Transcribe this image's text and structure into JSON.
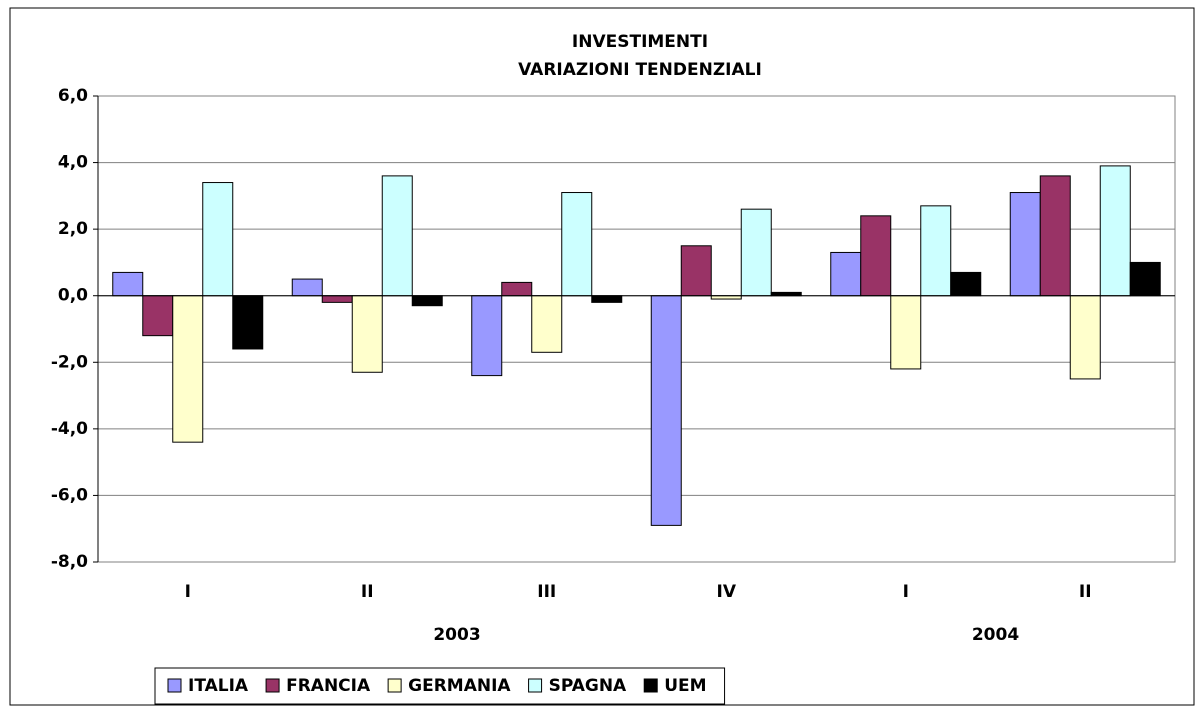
{
  "chart_data": {
    "type": "bar",
    "title": [
      "INVESTIMENTI",
      "VARIAZIONI TENDENZIALI"
    ],
    "categories": [
      "I",
      "II",
      "III",
      "IV",
      "I",
      "II"
    ],
    "groups": [
      {
        "label": "2003",
        "count": 4
      },
      {
        "label": "2004",
        "count": 2
      }
    ],
    "series": [
      {
        "name": "ITALIA",
        "color": "#9999ff",
        "values": [
          0.7,
          0.5,
          -2.4,
          -6.9,
          1.3,
          3.1
        ]
      },
      {
        "name": "FRANCIA",
        "color": "#993366",
        "values": [
          -1.2,
          -0.2,
          0.4,
          1.5,
          2.4,
          3.6
        ]
      },
      {
        "name": "GERMANIA",
        "color": "#ffffcc",
        "values": [
          -4.4,
          -2.3,
          -1.7,
          -0.1,
          -2.2,
          -2.5
        ]
      },
      {
        "name": "SPAGNA",
        "color": "#ccffff",
        "values": [
          3.4,
          3.6,
          3.1,
          2.6,
          2.7,
          3.9
        ]
      },
      {
        "name": "UEM",
        "color": "#000000",
        "values": [
          -1.6,
          -0.3,
          -0.2,
          0.1,
          0.7,
          1.0
        ]
      }
    ],
    "ylim": [
      -8,
      6
    ],
    "yticks": [
      {
        "value": -8,
        "label": "-8,0"
      },
      {
        "value": -6,
        "label": "-6,0"
      },
      {
        "value": -4,
        "label": "-4,0"
      },
      {
        "value": -2,
        "label": "-2,0"
      },
      {
        "value": 0,
        "label": "0,0"
      },
      {
        "value": 2,
        "label": "2,0"
      },
      {
        "value": 4,
        "label": "4,0"
      },
      {
        "value": 6,
        "label": "6,0"
      }
    ],
    "grid": true,
    "legend": "bottom"
  }
}
